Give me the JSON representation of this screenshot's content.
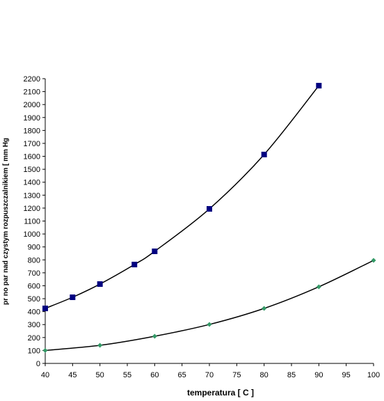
{
  "chart_data": {
    "type": "scatter",
    "x_label": "temperatura [ C ]",
    "y_label": "pr   no   par nad czystym rozpuszczalnikiem [ mm Hg",
    "xlim": [
      40,
      100
    ],
    "xticks": [
      40,
      45,
      50,
      55,
      60,
      65,
      70,
      75,
      80,
      85,
      90,
      95,
      100
    ],
    "ylim": [
      0,
      2200
    ],
    "yticks": [
      0,
      100,
      200,
      300,
      400,
      500,
      600,
      700,
      800,
      900,
      1000,
      1100,
      1200,
      1300,
      1400,
      1500,
      1600,
      1700,
      1800,
      1900,
      2000,
      2100,
      2200
    ],
    "series": [
      {
        "color": "#000080",
        "marker": "square",
        "x": [
          40,
          45,
          50,
          56.3,
          60,
          70,
          80,
          90
        ],
        "values": [
          425,
          511,
          613,
          764,
          866,
          1194,
          1614,
          2146
        ]
      },
      {
        "color": "#339966",
        "marker": "diamond",
        "x": [
          40,
          50,
          60,
          70,
          80,
          90,
          100
        ],
        "values": [
          100,
          140,
          210,
          301,
          425,
          592,
          796
        ]
      }
    ]
  }
}
